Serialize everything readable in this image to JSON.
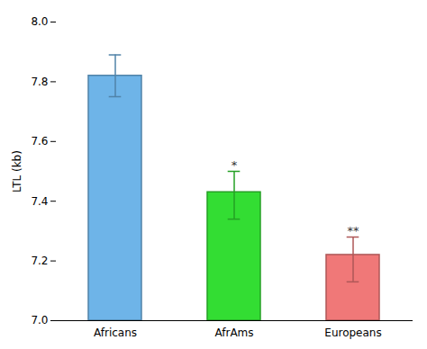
{
  "chart_data": {
    "type": "bar",
    "categories": [
      "Africans",
      "AfrAms",
      "Europeans"
    ],
    "values": [
      7.82,
      7.43,
      7.22
    ],
    "errors_upper": [
      0.07,
      0.07,
      0.06
    ],
    "errors_lower": [
      0.07,
      0.09,
      0.09
    ],
    "colors": [
      "#6EB4E8",
      "#33DD33",
      "#F07878"
    ],
    "annotations": [
      null,
      "*",
      "**"
    ],
    "ylabel": "LTL (kb)",
    "ylim": [
      7.0,
      8.0
    ],
    "yticks": [
      {
        "value": 7.0,
        "label": "7.0"
      },
      7.2,
      7.4,
      7.6,
      7.8,
      {
        "value": 8.0,
        "label": "8.0"
      }
    ],
    "grid": false
  }
}
